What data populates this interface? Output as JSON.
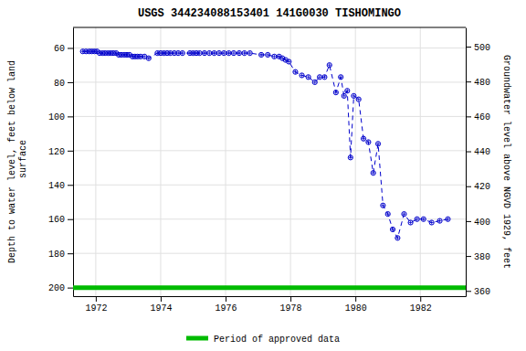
{
  "chart_data": {
    "type": "line",
    "title": "USGS 344234088153401 141G0030  TISHOMINGO",
    "ylabel": "Depth to water level, feet below land\n surface",
    "y2label": "Groundwater level above NGVD 1929, feet",
    "xlim": [
      1971.3,
      1983.4
    ],
    "xticks": [
      1972,
      1974,
      1976,
      1978,
      1980,
      1982
    ],
    "ylim": [
      205,
      48
    ],
    "yticks": [
      60,
      80,
      100,
      120,
      140,
      160,
      180,
      200
    ],
    "y2lim": [
      357,
      511
    ],
    "y2ticks": [
      360,
      380,
      400,
      420,
      440,
      460,
      480,
      500
    ],
    "grid": true,
    "legend": "bottom",
    "x": [
      1971.6,
      1971.7,
      1971.8,
      1971.88,
      1971.96,
      1972.04,
      1972.12,
      1972.21,
      1972.29,
      1972.38,
      1972.46,
      1972.54,
      1972.63,
      1972.71,
      1972.79,
      1972.88,
      1972.96,
      1973.04,
      1973.13,
      1973.21,
      1973.29,
      1973.38,
      1973.5,
      1973.63,
      1973.9,
      1974.0,
      1974.1,
      1974.2,
      1974.3,
      1974.42,
      1974.54,
      1974.67,
      1974.9,
      1975.0,
      1975.1,
      1975.2,
      1975.35,
      1975.5,
      1975.65,
      1975.8,
      1975.95,
      1976.1,
      1976.25,
      1976.42,
      1976.58,
      1976.75,
      1977.1,
      1977.3,
      1977.5,
      1977.65,
      1977.75,
      1977.85,
      1977.95,
      1978.15,
      1978.35,
      1978.55,
      1978.75,
      1978.9,
      1979.05,
      1979.2,
      1979.4,
      1979.55,
      1979.65,
      1979.75,
      1979.85,
      1979.95,
      1980.1,
      1980.25,
      1980.4,
      1980.55,
      1980.7,
      1980.85,
      1981.0,
      1981.15,
      1981.3,
      1981.5,
      1981.7,
      1981.9,
      1982.1,
      1982.35,
      1982.6,
      1982.85
    ],
    "series": [
      {
        "color": "#0000cc",
        "marker": "circle",
        "line_style": "dashed",
        "values": [
          62,
          62,
          62,
          62,
          62,
          62,
          63,
          63,
          63,
          63,
          63,
          63,
          63,
          64,
          64,
          64,
          64,
          64,
          65,
          65,
          65,
          65,
          65,
          66,
          63,
          63,
          63,
          63,
          63,
          63,
          63,
          63,
          63,
          63,
          63,
          63,
          63,
          63,
          63,
          63,
          63,
          63,
          63,
          63,
          63,
          63,
          64,
          64,
          65,
          65,
          66,
          67,
          68,
          74,
          76,
          77,
          80,
          77,
          77,
          70,
          86,
          77,
          88,
          85,
          124,
          88,
          90,
          113,
          115,
          133,
          116,
          152,
          157,
          166,
          171,
          157,
          162,
          160,
          160,
          162,
          161,
          160
        ]
      }
    ],
    "reference_lines": [
      {
        "value": 200,
        "label": "Period of approved data",
        "color": "#00bb00"
      }
    ]
  }
}
